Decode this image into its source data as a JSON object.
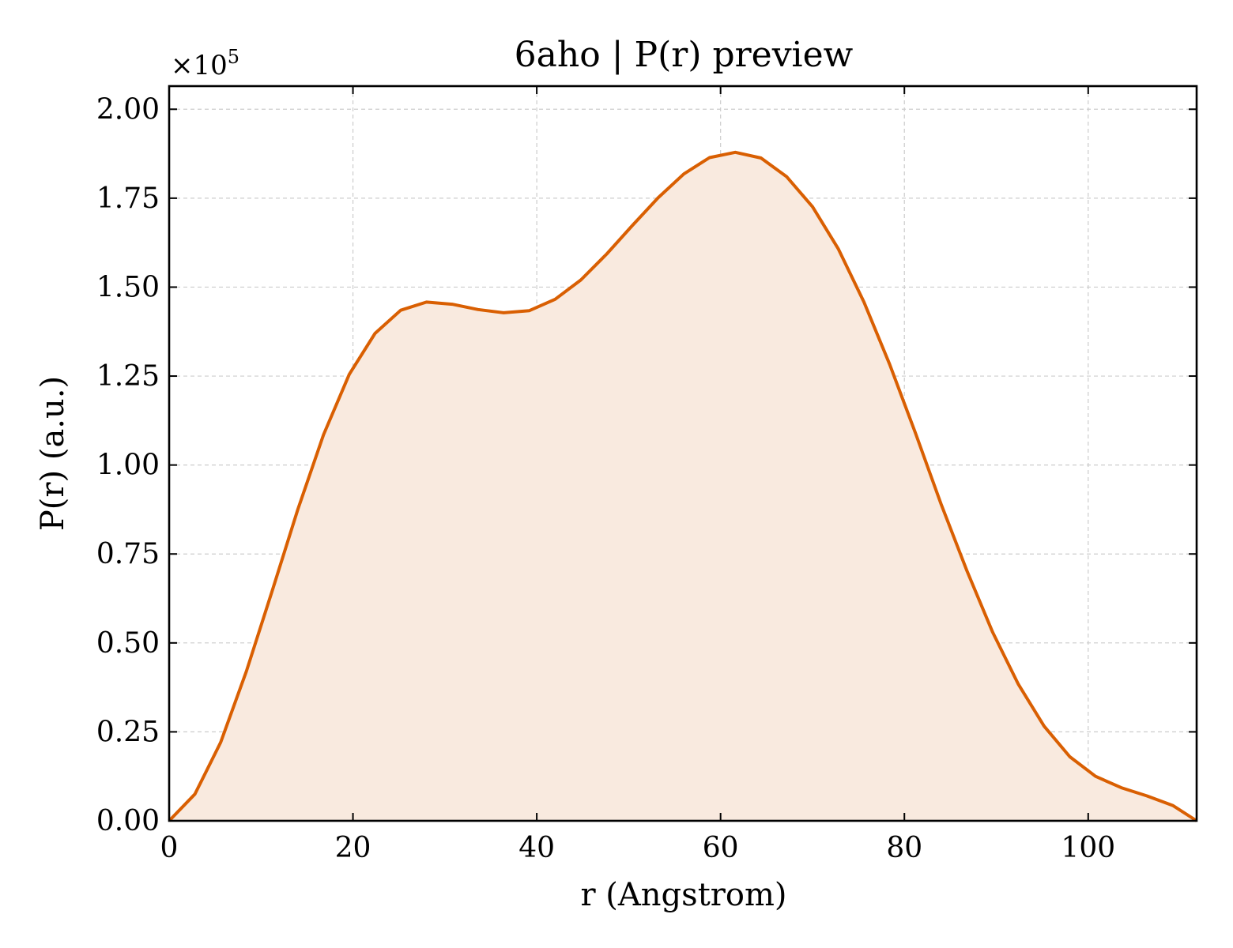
{
  "chart_data": {
    "type": "area",
    "title": "6aho | P(r) preview",
    "xlabel": "r (Angstrom)",
    "ylabel": "P(r) (a.u.)",
    "y_offset_label": "×10",
    "y_offset_exponent": "5",
    "y_scale": 100000,
    "xlim": [
      0,
      111.8
    ],
    "ylim": [
      0,
      2.065
    ],
    "xticks": [
      0,
      20,
      40,
      60,
      80,
      100
    ],
    "xtick_labels": [
      "0",
      "20",
      "40",
      "60",
      "80",
      "100"
    ],
    "yticks": [
      0,
      0.25,
      0.5,
      0.75,
      1.0,
      1.25,
      1.5,
      1.75,
      2.0
    ],
    "ytick_labels": [
      "0.00",
      "0.25",
      "0.50",
      "0.75",
      "1.00",
      "1.25",
      "1.50",
      "1.75",
      "2.00"
    ],
    "grid": true,
    "series": [
      {
        "color": "#d95f02",
        "fill_color": "#f9eadf",
        "x": [
          0,
          2.8,
          5.6,
          8.4,
          11.2,
          14.0,
          16.8,
          19.6,
          22.4,
          25.2,
          28.0,
          30.8,
          33.6,
          36.4,
          39.2,
          42.0,
          44.8,
          47.6,
          50.4,
          53.2,
          56.0,
          58.8,
          61.6,
          64.4,
          67.2,
          70.0,
          72.8,
          75.6,
          78.4,
          81.2,
          84.0,
          86.8,
          89.6,
          92.4,
          95.2,
          98.0,
          100.8,
          103.6,
          106.4,
          109.2,
          111.8
        ],
        "y": [
          0.0,
          0.075,
          0.22,
          0.42,
          0.645,
          0.875,
          1.085,
          1.255,
          1.37,
          1.435,
          1.458,
          1.452,
          1.437,
          1.428,
          1.434,
          1.466,
          1.52,
          1.593,
          1.673,
          1.751,
          1.818,
          1.864,
          1.879,
          1.863,
          1.81,
          1.726,
          1.608,
          1.458,
          1.283,
          1.09,
          0.89,
          0.703,
          0.53,
          0.384,
          0.266,
          0.18,
          0.125,
          0.093,
          0.07,
          0.043,
          0.0
        ]
      }
    ]
  }
}
